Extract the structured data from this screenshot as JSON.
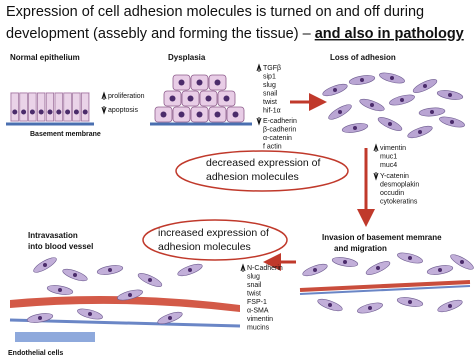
{
  "title": {
    "line1": "Expression of cell adhesion molecules is turned on and off during",
    "line2": "development (assebly and forming the tissue) – ",
    "emphasis": "and also in pathology"
  },
  "stages": {
    "normal": "Normal epithelium",
    "dysplasia": "Dysplasia",
    "loss": "Loss of adhesion",
    "invasion": [
      "Invasion of basement memrane",
      "and migration"
    ],
    "intravasation": [
      "Intravasation",
      "into blood vessel"
    ]
  },
  "labels": {
    "basement": "Basement membrane",
    "endothelial": "Endothelial cells"
  },
  "proliferation": {
    "up": "proliferation",
    "down": "apoptosis"
  },
  "dysplasia_markers": {
    "up": [
      "TGFβ",
      "sip1",
      "slug",
      "snail",
      "twist",
      "hif-1α"
    ],
    "down": [
      "E-cadherin",
      "β-cadherin",
      "α-catenin",
      "f actin"
    ]
  },
  "loss_markers": {
    "up": [
      "vimentin",
      "muc1",
      "muc4"
    ],
    "down": [
      "Y-catenin",
      "desmoplakin",
      "occudin",
      "cytokeratins"
    ]
  },
  "invasion_markers": {
    "up": [
      "N-Cadherin",
      "slug",
      "snail",
      "twist",
      "FSP-1",
      "α-SMA",
      "vimentin",
      "mucins"
    ]
  },
  "ovals": {
    "decreased": [
      "decreased expression of",
      "adhesion molecules"
    ],
    "increased": [
      "increased expression of",
      "adhesion molecules"
    ]
  }
}
